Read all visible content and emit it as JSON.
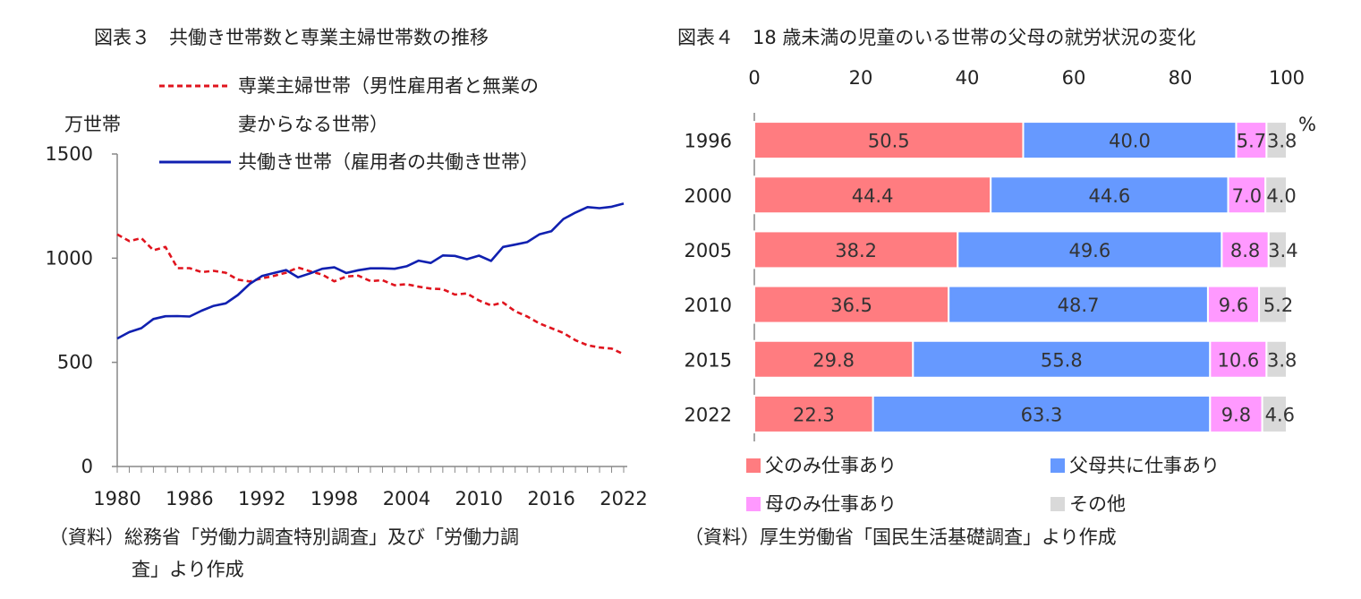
{
  "charts": {
    "left": {
      "title": "図表３　共働き世帯数と専業主婦世帯数の推移",
      "unit_label": "万世帯",
      "legend": {
        "housewife_line1": "専業主婦世帯（男性雇用者と無業の",
        "housewife_line2": "妻からなる世帯）",
        "dualincome": "共働き世帯（雇用者の共働き世帯）"
      },
      "source_line1": "（資料）総務省「労働力調査特別調査」及び「労働力調",
      "source_line2": "査」より作成",
      "colors": {
        "housewife": "#e0141e",
        "dualincome": "#1020b0"
      }
    },
    "right": {
      "title": "図表４　18 歳未満の児童のいる世帯の父母の就労状況の変化",
      "unit_label": "%",
      "source": "（資料）厚生労働省「国民生活基礎調査」より作成",
      "colors": [
        "#ff7c80",
        "#6699ff",
        "#ff99ff",
        "#d9d9d9"
      ]
    }
  },
  "chart_data": [
    {
      "type": "line",
      "title": "図表３　共働き世帯数と専業主婦世帯数の推移",
      "ylabel": "万世帯",
      "ylim": [
        0,
        1500
      ],
      "yticks": [
        "0",
        "500",
        "1000",
        "1500"
      ],
      "xlim": [
        1980,
        2022
      ],
      "xticks": [
        "1980",
        "1986",
        "1992",
        "1998",
        "2004",
        "2010",
        "2016",
        "2022"
      ],
      "x": [
        1980,
        1981,
        1982,
        1983,
        1984,
        1985,
        1986,
        1987,
        1988,
        1989,
        1990,
        1991,
        1992,
        1993,
        1994,
        1995,
        1996,
        1997,
        1998,
        1999,
        2000,
        2001,
        2002,
        2003,
        2004,
        2005,
        2006,
        2007,
        2008,
        2009,
        2010,
        2011,
        2012,
        2013,
        2014,
        2015,
        2016,
        2017,
        2018,
        2019,
        2020,
        2021,
        2022
      ],
      "series": [
        {
          "name": "専業主婦世帯（男性雇用者と無業の妻からなる世帯）",
          "style": "dashed",
          "values": [
            1114,
            1082,
            1096,
            1038,
            1054,
            952,
            952,
            933,
            939,
            930,
            897,
            888,
            903,
            915,
            930,
            955,
            937,
            921,
            889,
            912,
            916,
            890,
            894,
            870,
            875,
            863,
            854,
            851,
            825,
            831,
            797,
            773,
            787,
            745,
            720,
            687,
            664,
            641,
            606,
            582,
            571,
            566,
            539
          ]
        },
        {
          "name": "共働き世帯（雇用者の共働き世帯）",
          "style": "solid",
          "values": [
            614,
            645,
            664,
            708,
            721,
            722,
            720,
            748,
            771,
            783,
            823,
            877,
            914,
            929,
            943,
            908,
            927,
            949,
            956,
            929,
            942,
            951,
            951,
            949,
            961,
            988,
            977,
            1013,
            1011,
            995,
            1012,
            987,
            1054,
            1065,
            1077,
            1114,
            1129,
            1188,
            1219,
            1245,
            1240,
            1247,
            1262
          ]
        }
      ]
    },
    {
      "type": "bar",
      "orientation": "horizontal",
      "stacked": true,
      "title": "図表４　18 歳未満の児童のいる世帯の父母の就労状況の変化",
      "xlim": [
        0,
        100
      ],
      "xticks": [
        "0",
        "20",
        "40",
        "60",
        "80",
        "100"
      ],
      "unit": "%",
      "categories": [
        "1996",
        "2000",
        "2005",
        "2010",
        "2015",
        "2022"
      ],
      "series": [
        {
          "name": "父のみ仕事あり",
          "values": [
            50.5,
            44.4,
            38.2,
            36.5,
            29.8,
            22.3
          ],
          "labels": [
            "50.5",
            "44.4",
            "38.2",
            "36.5",
            "29.8",
            "22.3"
          ]
        },
        {
          "name": "父母共に仕事あり",
          "values": [
            40.0,
            44.6,
            49.6,
            48.7,
            55.8,
            63.3
          ],
          "labels": [
            "40.0",
            "44.6",
            "49.6",
            "48.7",
            "55.8",
            "63.3"
          ]
        },
        {
          "name": "母のみ仕事あり",
          "values": [
            5.7,
            7.0,
            8.8,
            9.6,
            10.6,
            9.8
          ],
          "labels": [
            "5.7",
            "7.0",
            "8.8",
            "9.6",
            "10.6",
            "9.8"
          ]
        },
        {
          "name": "その他",
          "values": [
            3.8,
            4.0,
            3.4,
            5.2,
            3.8,
            4.6
          ],
          "labels": [
            "3.8",
            "4.0",
            "3.4",
            "5.2",
            "3.8",
            "4.6"
          ]
        }
      ],
      "legend_position": "bottom"
    }
  ]
}
